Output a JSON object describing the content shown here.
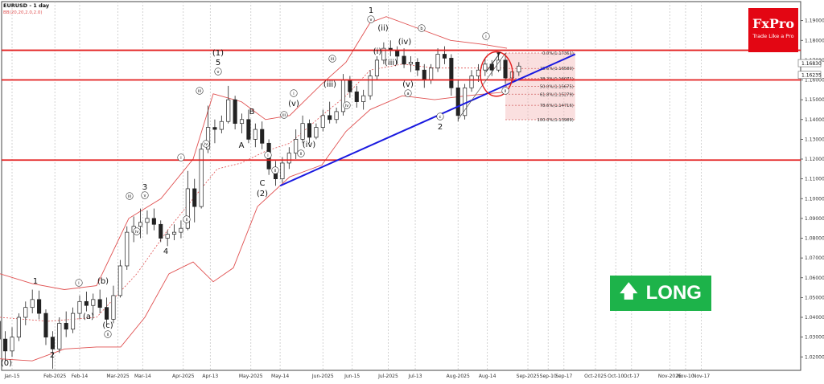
{
  "chart_data": {
    "type": "candlestick",
    "symbol_label": "EURUSD - 1 day",
    "indicator_label": "BB(20,20,2.0,2.0)",
    "ylim": [
      1.0132,
      1.1996
    ],
    "y_ticks": [
      "1.19000",
      "1.18000",
      "1.17000",
      "1.16000",
      "1.15000",
      "1.14000",
      "1.13000",
      "1.12000",
      "1.11000",
      "1.10000",
      "1.09000",
      "1.08000",
      "1.07000",
      "1.06000",
      "1.05000",
      "1.04000",
      "1.03000",
      "1.02000"
    ],
    "x_ticks": [
      {
        "label": "Jan-15",
        "date": "2025-01-15"
      },
      {
        "label": "Feb-2025",
        "date": "2025-02-03"
      },
      {
        "label": "Feb-14",
        "date": "2025-02-14"
      },
      {
        "label": "Mar-2025",
        "date": "2025-03-03"
      },
      {
        "label": "Mar-14",
        "date": "2025-03-14"
      },
      {
        "label": "Apr-2025",
        "date": "2025-04-01"
      },
      {
        "label": "Apr-13",
        "date": "2025-04-13"
      },
      {
        "label": "May-2025",
        "date": "2025-05-01"
      },
      {
        "label": "May-14",
        "date": "2025-05-14"
      },
      {
        "label": "Jun-2025",
        "date": "2025-06-02"
      },
      {
        "label": "Jun-15",
        "date": "2025-06-15"
      },
      {
        "label": "Jul-2025",
        "date": "2025-07-01"
      },
      {
        "label": "Jul-13",
        "date": "2025-07-13"
      },
      {
        "label": "Aug-2025",
        "date": "2025-08-01"
      },
      {
        "label": "Aug-14",
        "date": "2025-08-14"
      },
      {
        "label": "Sep-2025",
        "date": "2025-09-01"
      },
      {
        "label": "Sep-10",
        "date": "2025-09-10"
      },
      {
        "label": "Sep-17",
        "date": "2025-09-17"
      },
      {
        "label": "Oct-2025",
        "date": "2025-10-01"
      },
      {
        "label": "Oct-10",
        "date": "2025-10-10"
      },
      {
        "label": "Oct-17",
        "date": "2025-10-17"
      },
      {
        "label": "Nov-2025",
        "date": "2025-11-03"
      },
      {
        "label": "Nov-10",
        "date": "2025-11-10"
      },
      {
        "label": "Nov-17",
        "date": "2025-11-17"
      }
    ],
    "price_labels": [
      {
        "value": "1.16830",
        "y": 1.1683
      },
      {
        "value": "1.16235",
        "y": 1.16235
      }
    ],
    "horizontal_levels": [
      1.175,
      1.16,
      1.1195
    ],
    "trendline": {
      "from": {
        "date": "2025-05-14",
        "price": 1.1065
      },
      "to": {
        "date": "2025-09-22",
        "price": 1.173
      }
    },
    "fib_levels": [
      {
        "label": "0.0%(1.17361)",
        "value": 1.17361
      },
      {
        "label": "23.6%(1.16580)",
        "value": 1.1658
      },
      {
        "label": "38.2%(1.16071)",
        "value": 1.16071
      },
      {
        "label": "50.0%(1.15675)",
        "value": 1.15675
      },
      {
        "label": "61.8%(1.15279)",
        "value": 1.15279
      },
      {
        "label": "78.6%(1.14716)",
        "value": 1.14716
      },
      {
        "label": "100.0%(1.13989)",
        "value": 1.13989
      }
    ],
    "ohlc": [
      [
        "2025-01-06",
        1.031,
        1.042,
        1.028,
        1.038
      ],
      [
        "2025-01-09",
        1.038,
        1.04,
        1.026,
        1.029
      ],
      [
        "2025-01-12",
        1.029,
        1.033,
        1.018,
        1.023
      ],
      [
        "2025-01-15",
        1.023,
        1.035,
        1.02,
        1.03
      ],
      [
        "2025-01-18",
        1.03,
        1.042,
        1.028,
        1.04
      ],
      [
        "2025-01-21",
        1.04,
        1.048,
        1.036,
        1.045
      ],
      [
        "2025-01-24",
        1.045,
        1.054,
        1.042,
        1.049
      ],
      [
        "2025-01-27",
        1.049,
        1.0535,
        1.039,
        1.042
      ],
      [
        "2025-01-30",
        1.042,
        1.044,
        1.026,
        1.03
      ],
      [
        "2025-02-02",
        1.03,
        1.033,
        1.014,
        1.024
      ],
      [
        "2025-02-05",
        1.024,
        1.04,
        1.022,
        1.037
      ],
      [
        "2025-02-08",
        1.037,
        1.043,
        1.03,
        1.034
      ],
      [
        "2025-02-11",
        1.034,
        1.045,
        1.032,
        1.042
      ],
      [
        "2025-02-14",
        1.042,
        1.051,
        1.039,
        1.048
      ],
      [
        "2025-02-17",
        1.048,
        1.053,
        1.043,
        1.046
      ],
      [
        "2025-02-20",
        1.046,
        1.052,
        1.041,
        1.049
      ],
      [
        "2025-02-23",
        1.049,
        1.054,
        1.042,
        1.045
      ],
      [
        "2025-02-26",
        1.045,
        1.05,
        1.036,
        1.039
      ],
      [
        "2025-03-01",
        1.039,
        1.056,
        1.037,
        1.051
      ],
      [
        "2025-03-04",
        1.051,
        1.069,
        1.05,
        1.066
      ],
      [
        "2025-03-07",
        1.066,
        1.086,
        1.064,
        1.083
      ],
      [
        "2025-03-10",
        1.083,
        1.091,
        1.078,
        1.086
      ],
      [
        "2025-03-13",
        1.086,
        1.095,
        1.08,
        1.088
      ],
      [
        "2025-03-16",
        1.088,
        1.094,
        1.082,
        1.09
      ],
      [
        "2025-03-19",
        1.09,
        1.095,
        1.084,
        1.087
      ],
      [
        "2025-03-22",
        1.087,
        1.089,
        1.078,
        1.08
      ],
      [
        "2025-03-25",
        1.08,
        1.084,
        1.076,
        1.082
      ],
      [
        "2025-03-28",
        1.082,
        1.087,
        1.079,
        1.083
      ],
      [
        "2025-03-31",
        1.083,
        1.089,
        1.08,
        1.085
      ],
      [
        "2025-04-03",
        1.085,
        1.114,
        1.084,
        1.105
      ],
      [
        "2025-04-06",
        1.105,
        1.11,
        1.088,
        1.096
      ],
      [
        "2025-04-09",
        1.096,
        1.128,
        1.095,
        1.125
      ],
      [
        "2025-04-12",
        1.125,
        1.147,
        1.123,
        1.136
      ],
      [
        "2025-04-15",
        1.136,
        1.14,
        1.128,
        1.135
      ],
      [
        "2025-04-18",
        1.135,
        1.142,
        1.133,
        1.139
      ],
      [
        "2025-04-21",
        1.139,
        1.157,
        1.138,
        1.15
      ],
      [
        "2025-04-24",
        1.15,
        1.152,
        1.135,
        1.138
      ],
      [
        "2025-04-27",
        1.138,
        1.143,
        1.133,
        1.14
      ],
      [
        "2025-04-30",
        1.14,
        1.145,
        1.128,
        1.13
      ],
      [
        "2025-05-03",
        1.13,
        1.138,
        1.126,
        1.135
      ],
      [
        "2025-05-06",
        1.135,
        1.139,
        1.125,
        1.128
      ],
      [
        "2025-05-09",
        1.128,
        1.13,
        1.112,
        1.115
      ],
      [
        "2025-05-12",
        1.115,
        1.119,
        1.1065,
        1.11
      ],
      [
        "2025-05-15",
        1.11,
        1.121,
        1.108,
        1.118
      ],
      [
        "2025-05-18",
        1.118,
        1.126,
        1.115,
        1.123
      ],
      [
        "2025-05-21",
        1.123,
        1.135,
        1.12,
        1.13
      ],
      [
        "2025-05-24",
        1.13,
        1.142,
        1.128,
        1.138
      ],
      [
        "2025-05-27",
        1.138,
        1.14,
        1.128,
        1.131
      ],
      [
        "2025-05-30",
        1.131,
        1.138,
        1.13,
        1.136
      ],
      [
        "2025-06-02",
        1.136,
        1.145,
        1.134,
        1.142
      ],
      [
        "2025-06-05",
        1.142,
        1.149,
        1.138,
        1.14
      ],
      [
        "2025-06-08",
        1.14,
        1.146,
        1.138,
        1.144
      ],
      [
        "2025-06-11",
        1.144,
        1.163,
        1.142,
        1.16
      ],
      [
        "2025-06-14",
        1.16,
        1.162,
        1.151,
        1.154
      ],
      [
        "2025-06-17",
        1.154,
        1.157,
        1.146,
        1.149
      ],
      [
        "2025-06-20",
        1.149,
        1.155,
        1.145,
        1.152
      ],
      [
        "2025-06-23",
        1.152,
        1.165,
        1.15,
        1.162
      ],
      [
        "2025-06-26",
        1.162,
        1.172,
        1.16,
        1.17
      ],
      [
        "2025-06-29",
        1.17,
        1.179,
        1.168,
        1.176
      ],
      [
        "2025-07-02",
        1.176,
        1.18,
        1.172,
        1.175
      ],
      [
        "2025-07-05",
        1.175,
        1.177,
        1.168,
        1.172
      ],
      [
        "2025-07-08",
        1.172,
        1.176,
        1.166,
        1.168
      ],
      [
        "2025-07-11",
        1.168,
        1.172,
        1.164,
        1.169
      ],
      [
        "2025-07-14",
        1.169,
        1.171,
        1.162,
        1.165
      ],
      [
        "2025-07-17",
        1.165,
        1.168,
        1.156,
        1.16
      ],
      [
        "2025-07-20",
        1.16,
        1.168,
        1.158,
        1.166
      ],
      [
        "2025-07-23",
        1.166,
        1.176,
        1.164,
        1.173
      ],
      [
        "2025-07-26",
        1.173,
        1.177,
        1.168,
        1.171
      ],
      [
        "2025-07-29",
        1.171,
        1.173,
        1.152,
        1.156
      ],
      [
        "2025-08-01",
        1.156,
        1.16,
        1.139,
        1.142
      ],
      [
        "2025-08-04",
        1.142,
        1.158,
        1.14,
        1.156
      ],
      [
        "2025-08-07",
        1.156,
        1.165,
        1.154,
        1.162
      ],
      [
        "2025-08-10",
        1.162,
        1.168,
        1.159,
        1.165
      ],
      [
        "2025-08-13",
        1.165,
        1.171,
        1.162,
        1.168
      ],
      [
        "2025-08-16",
        1.168,
        1.17,
        1.162,
        1.165
      ],
      [
        "2025-08-19",
        1.165,
        1.174,
        1.164,
        1.17
      ],
      [
        "2025-08-22",
        1.17,
        1.1736,
        1.158,
        1.161
      ],
      [
        "2025-08-25",
        1.161,
        1.166,
        1.159,
        1.164
      ],
      [
        "2025-08-28",
        1.164,
        1.169,
        1.162,
        1.167
      ]
    ],
    "bb_upper": [
      [
        0,
        1.062
      ],
      [
        40,
        1.057
      ],
      [
        80,
        1.054
      ],
      [
        120,
        1.056
      ],
      [
        160,
        1.09
      ],
      [
        200,
        1.1
      ],
      [
        240,
        1.12
      ],
      [
        265,
        1.153
      ],
      [
        300,
        1.149
      ],
      [
        330,
        1.14
      ],
      [
        360,
        1.142
      ],
      [
        400,
        1.158
      ],
      [
        430,
        1.169
      ],
      [
        460,
        1.189
      ],
      [
        480,
        1.192
      ],
      [
        520,
        1.186
      ],
      [
        560,
        1.18
      ],
      [
        600,
        1.178
      ],
      [
        630,
        1.176
      ]
    ],
    "bb_lower": [
      [
        0,
        1.019
      ],
      [
        40,
        1.018
      ],
      [
        80,
        1.024
      ],
      [
        120,
        1.025
      ],
      [
        150,
        1.025
      ],
      [
        180,
        1.04
      ],
      [
        210,
        1.062
      ],
      [
        240,
        1.068
      ],
      [
        265,
        1.058
      ],
      [
        290,
        1.065
      ],
      [
        320,
        1.096
      ],
      [
        360,
        1.111
      ],
      [
        400,
        1.117
      ],
      [
        430,
        1.134
      ],
      [
        460,
        1.145
      ],
      [
        500,
        1.152
      ],
      [
        540,
        1.15
      ],
      [
        580,
        1.152
      ],
      [
        630,
        1.154
      ]
    ],
    "bb_mid": [
      [
        0,
        1.04
      ],
      [
        60,
        1.038
      ],
      [
        120,
        1.04
      ],
      [
        170,
        1.062
      ],
      [
        210,
        1.085
      ],
      [
        240,
        1.1
      ],
      [
        270,
        1.115
      ],
      [
        300,
        1.118
      ],
      [
        330,
        1.124
      ],
      [
        360,
        1.128
      ],
      [
        400,
        1.142
      ],
      [
        430,
        1.152
      ],
      [
        460,
        1.165
      ],
      [
        500,
        1.168
      ],
      [
        540,
        1.166
      ],
      [
        580,
        1.166
      ],
      [
        630,
        1.166
      ]
    ],
    "wave_labels": [
      {
        "text": "(0)",
        "x": 8,
        "y": 451,
        "circle": false
      },
      {
        "text": "1",
        "x": 44,
        "y": 349,
        "circle": false
      },
      {
        "text": "2",
        "x": 65,
        "y": 441,
        "circle": false
      },
      {
        "text": "i",
        "x": 98,
        "y": 352,
        "circle": true
      },
      {
        "text": "(b)",
        "x": 128,
        "y": 349,
        "circle": false
      },
      {
        "text": "(a)",
        "x": 110,
        "y": 393,
        "circle": false
      },
      {
        "text": "(c)",
        "x": 134,
        "y": 404,
        "circle": false
      },
      {
        "text": "ii",
        "x": 134,
        "y": 416,
        "circle": true
      },
      {
        "text": "iii",
        "x": 161,
        "y": 244,
        "circle": true
      },
      {
        "text": "iv",
        "x": 170,
        "y": 288,
        "circle": true
      },
      {
        "text": "3",
        "x": 180,
        "y": 232,
        "circle": false
      },
      {
        "text": "v",
        "x": 180,
        "y": 243,
        "circle": true
      },
      {
        "text": "4",
        "x": 206,
        "y": 312,
        "circle": false
      },
      {
        "text": "ii",
        "x": 232,
        "y": 273,
        "circle": true
      },
      {
        "text": "i",
        "x": 225,
        "y": 196,
        "circle": true
      },
      {
        "text": "iii",
        "x": 248,
        "y": 113,
        "circle": true
      },
      {
        "text": "iv",
        "x": 256,
        "y": 179,
        "circle": true
      },
      {
        "text": "(1)",
        "x": 271,
        "y": 65,
        "circle": false
      },
      {
        "text": "5",
        "x": 271,
        "y": 77,
        "circle": false
      },
      {
        "text": "v",
        "x": 271,
        "y": 89,
        "circle": true
      },
      {
        "text": "B",
        "x": 313,
        "y": 138,
        "circle": false
      },
      {
        "text": "A",
        "x": 300,
        "y": 180,
        "circle": false
      },
      {
        "text": "C",
        "x": 326,
        "y": 227,
        "circle": false
      },
      {
        "text": "(2)",
        "x": 326,
        "y": 240,
        "circle": false
      },
      {
        "text": "i",
        "x": 333,
        "y": 193,
        "circle": true
      },
      {
        "text": "ii",
        "x": 342,
        "y": 212,
        "circle": true
      },
      {
        "text": "i",
        "x": 365,
        "y": 116,
        "circle": true
      },
      {
        "text": "(v)",
        "x": 365,
        "y": 128,
        "circle": false
      },
      {
        "text": "iii",
        "x": 353,
        "y": 143,
        "circle": true
      },
      {
        "text": "ii",
        "x": 374,
        "y": 191,
        "circle": true
      },
      {
        "text": "(iv)",
        "x": 384,
        "y": 179,
        "circle": false
      },
      {
        "text": "iii",
        "x": 413,
        "y": 73,
        "circle": true
      },
      {
        "text": "(iii)",
        "x": 410,
        "y": 104,
        "circle": false
      },
      {
        "text": "iv",
        "x": 431,
        "y": 131,
        "circle": true
      },
      {
        "text": "1",
        "x": 461,
        "y": 12,
        "circle": false
      },
      {
        "text": "v",
        "x": 461,
        "y": 24,
        "circle": true
      },
      {
        "text": "(ii)",
        "x": 476,
        "y": 34,
        "circle": false
      },
      {
        "text": "(i)",
        "x": 469,
        "y": 63,
        "circle": false
      },
      {
        "text": "(iii)",
        "x": 486,
        "y": 77,
        "circle": false
      },
      {
        "text": "(iv)",
        "x": 503,
        "y": 51,
        "circle": false
      },
      {
        "text": "(v)",
        "x": 507,
        "y": 104,
        "circle": false
      },
      {
        "text": "a",
        "x": 507,
        "y": 116,
        "circle": true
      },
      {
        "text": "b",
        "x": 524,
        "y": 35,
        "circle": true
      },
      {
        "text": "c",
        "x": 547,
        "y": 145,
        "circle": true
      },
      {
        "text": "2",
        "x": 547,
        "y": 157,
        "circle": false
      },
      {
        "text": "i",
        "x": 604,
        "y": 45,
        "circle": true
      },
      {
        "text": "ii",
        "x": 628,
        "y": 113,
        "circle": true
      }
    ]
  },
  "brand": {
    "name": "FxPro",
    "tagline": "Trade Like a Pro"
  },
  "signal": {
    "label": "LONG",
    "color": "#1db34a"
  }
}
